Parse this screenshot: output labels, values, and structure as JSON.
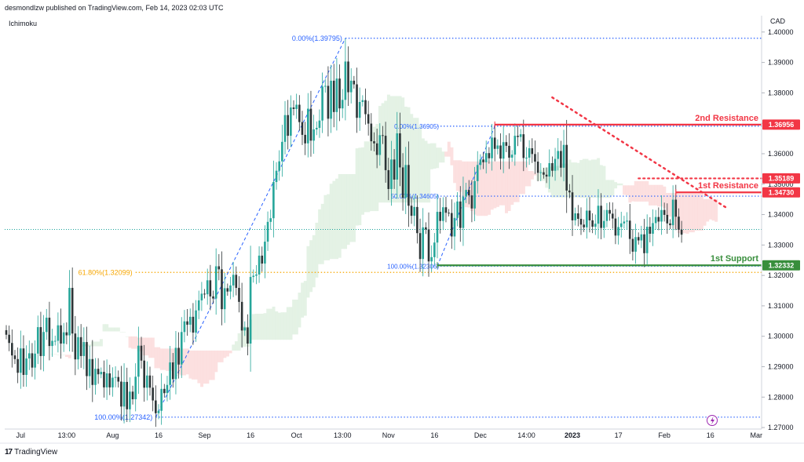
{
  "header": {
    "published": "desmondlzw published on TradingView.com, Feb 14, 2023 02:03 UTC",
    "indicator": "Ichimoku",
    "currency": "CAD"
  },
  "footer": {
    "brand": "TradingView",
    "logo_glyph": "17"
  },
  "colors": {
    "resistance": "#f23645",
    "support": "#388e3c",
    "fib": "#2962ff",
    "fib_618": "#f7a600",
    "cloud_bull": "#dff0e0",
    "cloud_bear": "#fbdada",
    "candle_up": "#26a69a",
    "candle_down": "#2d3436",
    "current_price": "#1aa39a",
    "lightning": "#9c27b0"
  },
  "chart_data": {
    "type": "candlestick",
    "instrument": "CAD",
    "ylim": [
      1.2695,
      1.4015
    ],
    "y_ticks": [
      "1.40000",
      "1.39000",
      "1.38000",
      "1.37000",
      "1.36000",
      "1.35000",
      "1.34000",
      "1.33000",
      "1.32000",
      "1.31000",
      "1.30000",
      "1.29000",
      "1.28000",
      "1.27000"
    ],
    "y_tick_values": [
      1.4,
      1.39,
      1.38,
      1.37,
      1.36,
      1.35,
      1.34,
      1.33,
      1.32,
      1.31,
      1.3,
      1.29,
      1.28,
      1.27
    ],
    "x_ticks": [
      "Jul",
      "13:00",
      "Aug",
      "16",
      "Sep",
      "16",
      "Oct",
      "13:00",
      "Nov",
      "16",
      "Dec",
      "14:00",
      "2023",
      "17",
      "Feb",
      "16",
      "Mar"
    ],
    "x_tick_index": [
      5,
      21,
      37,
      53,
      69,
      85,
      101,
      117,
      133,
      149,
      165,
      181,
      197,
      213,
      229,
      245,
      261
    ],
    "x_ticks_bold": [
      "2023"
    ],
    "price_labels": [
      {
        "value": 1.36956,
        "text": "1.36956",
        "role": "resistance"
      },
      {
        "value": 1.35189,
        "text": "1.35189",
        "role": "resistance"
      },
      {
        "value": 1.3473,
        "text": "1.34730",
        "role": "resistance"
      },
      {
        "value": 1.32332,
        "text": "1.32332",
        "role": "support"
      }
    ],
    "levels": [
      {
        "name": "2nd Resistance",
        "value": 1.36956,
        "from": 170,
        "style": "solid"
      },
      {
        "name": "1st Resistance",
        "value": 1.3473,
        "from": 233,
        "style": "solid"
      },
      {
        "name": "",
        "value": 1.35189,
        "from": 220,
        "style": "dotted"
      },
      {
        "name": "1st Support",
        "value": 1.32332,
        "from": 150,
        "style": "solid"
      }
    ],
    "fib_left": [
      {
        "text": "0.00%(1.39795)",
        "value": 1.39795,
        "from": 118
      },
      {
        "text": "61.80%(1.32099)",
        "value": 1.32099,
        "from": 45
      },
      {
        "text": "100.00%(1.27342)",
        "value": 1.27342,
        "from": 52
      }
    ],
    "fib_right": [
      {
        "text": "0.00%(1.36905)",
        "value": 1.36905,
        "from": 150
      },
      {
        "text": "50.00%(1.34605)",
        "value": 1.34605,
        "from": 150
      },
      {
        "text": "100.00%(1.32306)",
        "value": 1.32306,
        "from": 150
      }
    ],
    "trend_dotted": [
      {
        "i": 190,
        "v": 1.3785
      },
      {
        "i": 251,
        "v": 1.342
      }
    ],
    "current_price": 1.3351,
    "closes": [
      1.3005,
      1.2978,
      1.2937,
      1.2925,
      1.288,
      1.296,
      1.2873,
      1.2927,
      1.2944,
      1.2897,
      1.2943,
      1.303,
      1.2935,
      1.3014,
      1.3061,
      1.2968,
      1.2985,
      1.2985,
      1.3036,
      1.2976,
      1.3013,
      1.3003,
      1.3159,
      1.3009,
      1.2924,
      1.2997,
      1.2935,
      1.2981,
      1.2869,
      1.2925,
      1.284,
      1.2893,
      1.2875,
      1.2883,
      1.2832,
      1.2878,
      1.2832,
      1.2864,
      1.2866,
      1.2851,
      1.2769,
      1.285,
      1.276,
      1.2818,
      1.2793,
      1.2867,
      1.2969,
      1.292,
      1.2831,
      1.2871,
      1.2831,
      1.2789,
      1.2747,
      1.2755,
      1.2827,
      1.2813,
      1.284,
      1.2914,
      1.2859,
      1.2962,
      1.2907,
      1.3014,
      1.3049,
      1.3038,
      1.3064,
      1.3012,
      1.3085,
      1.3118,
      1.314,
      1.3138,
      1.3184,
      1.3131,
      1.3124,
      1.323,
      1.322,
      1.3089,
      1.3158,
      1.3147,
      1.3167,
      1.3202,
      1.3159,
      1.3113,
      1.3019,
      1.3029,
      1.2976,
      1.3195,
      1.3199,
      1.3203,
      1.3265,
      1.3239,
      1.3311,
      1.3376,
      1.3388,
      1.3507,
      1.3544,
      1.3575,
      1.3639,
      1.3727,
      1.3659,
      1.3752,
      1.3747,
      1.3761,
      1.3704,
      1.3662,
      1.3634,
      1.3748,
      1.3643,
      1.368,
      1.3685,
      1.3709,
      1.3821,
      1.3823,
      1.3715,
      1.384,
      1.3737,
      1.3847,
      1.3749,
      1.3777,
      1.3903,
      1.3802,
      1.384,
      1.3828,
      1.3718,
      1.377,
      1.3776,
      1.373,
      1.3699,
      1.3641,
      1.3634,
      1.3596,
      1.3661,
      1.3659,
      1.3546,
      1.3484,
      1.3581,
      1.3515,
      1.3667,
      1.3555,
      1.3455,
      1.3563,
      1.3429,
      1.3396,
      1.3425,
      1.3339,
      1.3254,
      1.3358,
      1.3351,
      1.3246,
      1.326,
      1.3308,
      1.3409,
      1.3379,
      1.3424,
      1.3406,
      1.3405,
      1.3328,
      1.3389,
      1.3443,
      1.3356,
      1.3459,
      1.3481,
      1.3463,
      1.342,
      1.351,
      1.3563,
      1.3581,
      1.3572,
      1.3602,
      1.3585,
      1.3653,
      1.3616,
      1.3627,
      1.3584,
      1.3638,
      1.3626,
      1.3587,
      1.3597,
      1.3659,
      1.3655,
      1.3664,
      1.3586,
      1.3587,
      1.3618,
      1.3599,
      1.3574,
      1.3537,
      1.3539,
      1.3531,
      1.3525,
      1.3569,
      1.3544,
      1.3583,
      1.3609,
      1.3554,
      1.3629,
      1.3479,
      1.3473,
      1.3381,
      1.3404,
      1.3386,
      1.3367,
      1.3358,
      1.3413,
      1.3381,
      1.336,
      1.337,
      1.3429,
      1.3356,
      1.3379,
      1.3415,
      1.3403,
      1.3387,
      1.3331,
      1.3359,
      1.3371,
      1.3377,
      1.338,
      1.332,
      1.3278,
      1.3326,
      1.3315,
      1.3335,
      1.3273,
      1.336,
      1.3337,
      1.3372,
      1.3392,
      1.3377,
      1.3415,
      1.3399,
      1.3371,
      1.3365,
      1.3449,
      1.3393,
      1.335,
      1.3334
    ]
  }
}
